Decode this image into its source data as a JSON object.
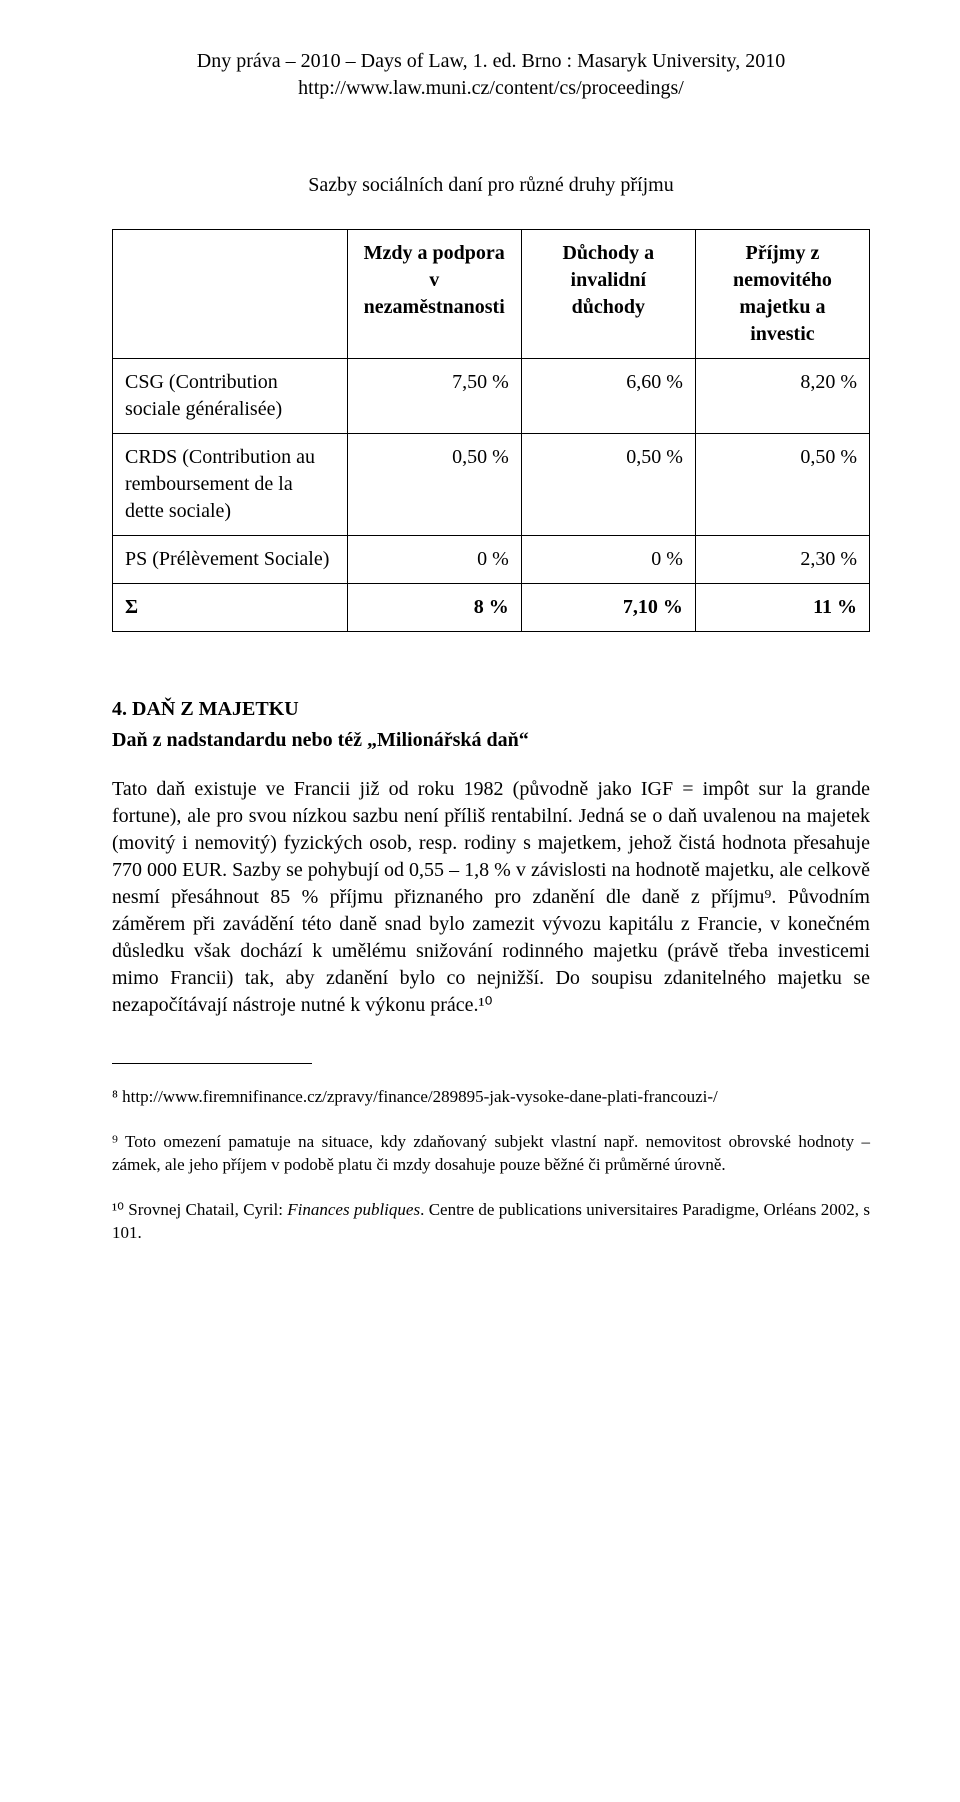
{
  "header": {
    "line1": "Dny práva – 2010 – Days of Law, 1. ed. Brno : Masaryk University, 2010",
    "line2": "http://www.law.muni.cz/content/cs/proceedings/"
  },
  "tableTitle": "Sazby sociálních daní pro různé druhy příjmu",
  "table": {
    "head": {
      "blank": "",
      "c1": "Mzdy a podpora v nezaměstnanosti",
      "c2": "Důchody a invalidní důchody",
      "c3": "Příjmy z nemovitého majetku a investic"
    },
    "rows": [
      {
        "label": "CSG (Contribution sociale généralisée)",
        "v1": "7,50 %",
        "v2": "6,60 %",
        "v3": "8,20 %"
      },
      {
        "label": "CRDS (Contribution au remboursement de la dette sociale)",
        "v1": "0,50 %",
        "v2": "0,50 %",
        "v3": "0,50 %"
      },
      {
        "label": "PS (Prélèvement Sociale)",
        "v1": "0 %",
        "v2": "0 %",
        "v3": "2,30 %"
      },
      {
        "label": "Σ",
        "v1": "8 %",
        "v2": "7,10 %",
        "v3": "11 %"
      }
    ]
  },
  "sectionNum": "4. DAŇ Z MAJETKU",
  "sectionSub": "Daň z nadstandardu nebo též „Milionářská daň“",
  "paragraph": "Tato daň existuje ve Francii již od roku 1982 (původně jako IGF = impôt sur la grande fortune), ale pro svou nízkou sazbu není příliš rentabilní. Jedná se o daň uvalenou na majetek (movitý i nemovitý) fyzických osob, resp. rodiny s majetkem, jehož čistá hodnota přesahuje 770 000 EUR. Sazby se pohybují od 0,55 – 1,8 % v závislosti na hodnotě majetku, ale celkově nesmí přesáhnout 85 % příjmu přiznaného pro zdanění dle daně z příjmu⁹. Původním záměrem při zavádění této daně snad bylo zamezit vývozu kapitálu z Francie, v konečném důsledku však dochází k umělému snižování rodinného majetku (právě třeba investicemi mimo Francii) tak, aby zdanění bylo co nejnižší. Do soupisu zdanitelného majetku se nezapočítávají nástroje nutné k výkonu práce.¹⁰",
  "footnotes": {
    "f8": "⁸ http://www.firemnifinance.cz/zpravy/finance/289895-jak-vysoke-dane-plati-francouzi-/",
    "f9": "⁹ Toto omezení pamatuje na situace, kdy zdaňovaný subjekt vlastní např. nemovitost obrovské hodnoty – zámek, ale jeho příjem v podobě platu či mzdy dosahuje pouze běžné či průměrné úrovně.",
    "f10_a": "¹⁰ Srovnej Chatail, Cyril: ",
    "f10_i": "Finances publiques",
    "f10_b": ". Centre de publications universitaires Paradigme, Orléans 2002, s 101."
  }
}
